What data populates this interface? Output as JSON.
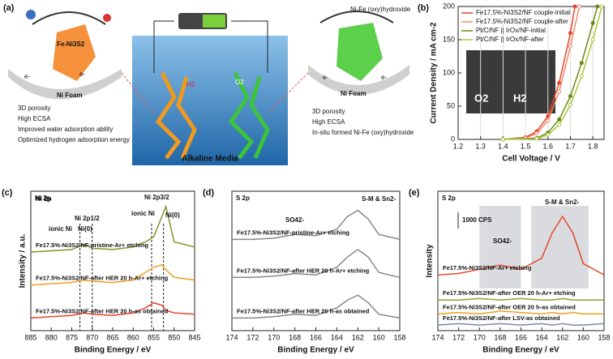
{
  "diagram": {
    "panel_label": "(a)",
    "left_catalyst": "Fe-Ni3S2",
    "left_substrate": "Ni Foam",
    "right_catalyst": "Ni-Fe (oxy)hydroxide",
    "right_substrate": "Ni Foam",
    "electron": "e-",
    "center_label": "Alkaline Media",
    "h2": "H2",
    "o2": "O2",
    "left_points": [
      "3D porosity",
      "High ECSA",
      "Improved water adsorption ability",
      "Optimized hydrogen adsorption energy"
    ],
    "right_points": [
      "3D porosity",
      "High ECSA",
      "In-situ formed Ni-Fe (oxy)hydroxide"
    ]
  },
  "chart_data": [
    {
      "type": "line",
      "panel_label": "(b)",
      "xlabel": "Cell Voltage / V",
      "ylabel": "Current Density / mA cm-2",
      "xlim": [
        1.2,
        1.85
      ],
      "xticks": [
        1.2,
        1.3,
        1.4,
        1.5,
        1.6,
        1.7,
        1.8
      ],
      "ylim": [
        0,
        200
      ],
      "yticks": [
        0,
        50,
        100,
        150,
        200
      ],
      "legend": "upper left",
      "inset_labels": [
        "O2",
        "H2"
      ],
      "series": [
        {
          "name": "Fe17.5%-Ni3S2/NF couple-initial",
          "color": "#e8452c",
          "x": [
            1.4,
            1.5,
            1.55,
            1.6,
            1.65,
            1.7,
            1.72
          ],
          "values": [
            0,
            3,
            12,
            35,
            85,
            160,
            200
          ]
        },
        {
          "name": "Fe17.5%-Ni3S2/NF couple-after",
          "color": "#f08a6a",
          "x": [
            1.4,
            1.5,
            1.55,
            1.6,
            1.65,
            1.7,
            1.74
          ],
          "values": [
            0,
            2,
            9,
            28,
            72,
            140,
            200
          ]
        },
        {
          "name": "Pt/C/NF || IrOx/NF-initial",
          "color": "#6a8a1a",
          "x": [
            1.4,
            1.55,
            1.6,
            1.65,
            1.7,
            1.75,
            1.8,
            1.82
          ],
          "values": [
            0,
            2,
            10,
            30,
            65,
            115,
            175,
            200
          ]
        },
        {
          "name": "Pt/C/NF || IrOx/NF-after",
          "color": "#a8c838",
          "x": [
            1.4,
            1.55,
            1.6,
            1.65,
            1.7,
            1.75,
            1.8,
            1.84
          ],
          "values": [
            0,
            1,
            7,
            22,
            52,
            95,
            150,
            200
          ]
        }
      ]
    },
    {
      "type": "line",
      "panel_label": "(c)",
      "title": "Ni 2p",
      "xlabel": "Binding Energy / eV",
      "ylabel": "Intensity / a.u.",
      "xlim": [
        885,
        845
      ],
      "xticks": [
        885,
        880,
        875,
        870,
        865,
        860,
        855,
        850,
        845
      ],
      "ylim": [
        0,
        110
      ],
      "x": [
        885,
        880,
        875,
        872,
        870,
        865,
        860,
        857,
        855,
        853,
        852,
        850,
        845
      ],
      "series": [
        {
          "name": "Fe17.5%-Ni3S2/NF-pristine-Ar+ etching",
          "color": "#7a9a2a",
          "values": [
            62,
            63,
            64,
            68,
            65,
            64,
            66,
            70,
            74,
            90,
            98,
            70,
            66
          ]
        },
        {
          "name": "Fe17.5%-Ni3S2/NF-after HER 20 h-Ar+ etching",
          "color": "#f0a020",
          "values": [
            36,
            37,
            38,
            40,
            39,
            38,
            40,
            46,
            50,
            52,
            48,
            42,
            40
          ]
        },
        {
          "name": "Fe17.5%-Ni3S2/NF-after HER 20 h-as obtained",
          "color": "#e8452c",
          "values": [
            10,
            11,
            12,
            14,
            13,
            12,
            14,
            18,
            22,
            20,
            16,
            14,
            13
          ]
        }
      ],
      "vlines": [
        873,
        870,
        855.5,
        852.6
      ],
      "annotations": [
        "Ni 2p",
        "Ni 2p1/2",
        "ionic Ni",
        "Ni(0)",
        "Ni 2p3/2",
        "ionic Ni",
        "Ni(0)"
      ]
    },
    {
      "type": "line",
      "panel_label": "(d)",
      "title": "S 2p",
      "xlabel": "Binding Energy / eV",
      "xlim": [
        174,
        158
      ],
      "xticks": [
        174,
        172,
        170,
        168,
        166,
        164,
        162,
        160,
        158
      ],
      "ylim": [
        0,
        110
      ],
      "x": [
        174,
        172,
        170,
        168,
        166,
        164,
        163,
        162,
        161,
        160,
        158
      ],
      "series": [
        {
          "name": "Fe17.5%-Ni3S2/NF-pristine-Ar+ etching",
          "color": "#888888",
          "values": [
            72,
            72,
            73,
            76,
            75,
            80,
            90,
            95,
            88,
            76,
            72
          ]
        },
        {
          "name": "Fe17.5%-Ni3S2/NF-after HER 20 h-Ar+ etching",
          "color": "#888888",
          "values": [
            42,
            42,
            43,
            45,
            44,
            50,
            58,
            64,
            58,
            46,
            42
          ]
        },
        {
          "name": "Fe17.5%-Ni3S2/NF-after HER 20 h-as obtained",
          "color": "#888888",
          "values": [
            10,
            10,
            11,
            13,
            12,
            18,
            24,
            28,
            22,
            13,
            10
          ]
        }
      ],
      "annotations": [
        "SO42-",
        "S-M & Sn2-"
      ]
    },
    {
      "type": "line",
      "panel_label": "(e)",
      "title": "S 2p",
      "xlabel": "Binding Energy / eV",
      "ylabel": "Intensity",
      "xlim": [
        174,
        158
      ],
      "xticks": [
        174,
        172,
        170,
        168,
        166,
        164,
        162,
        160,
        158
      ],
      "ylim": [
        0,
        100
      ],
      "x": [
        174,
        172,
        170,
        168,
        166,
        164,
        163,
        162,
        161,
        160,
        158
      ],
      "shaded": [
        [
          170,
          166
        ],
        [
          165,
          159.5
        ]
      ],
      "series": [
        {
          "name": "Fe17.5%-Ni3S2/NF-Ar+ etching",
          "color": "#e8452c",
          "values": [
            40,
            41,
            44,
            47,
            44,
            52,
            70,
            82,
            70,
            48,
            40
          ]
        },
        {
          "name": "Fe17.5%-Ni3S2/NF-after OER 20 h-Ar+ etching",
          "color": "#8aa830",
          "values": [
            22,
            22,
            23,
            22,
            23,
            22,
            22,
            23,
            22,
            22,
            22
          ]
        },
        {
          "name": "Fe17.5%-Ni3S2/NF-after OER 20 h-as obtained",
          "color": "#f0a020",
          "values": [
            12,
            13,
            12,
            14,
            13,
            12,
            13,
            12,
            13,
            12,
            12
          ]
        },
        {
          "name": "Fe17.5%-Ni3S2/NF-after LSV-as obtained",
          "color": "#7a8aa8",
          "values": [
            4,
            5,
            4,
            5,
            4,
            5,
            4,
            5,
            4,
            4,
            5
          ]
        }
      ],
      "annotations": [
        "SO42-",
        "S-M & Sn2-",
        "1000 CPS"
      ]
    }
  ]
}
